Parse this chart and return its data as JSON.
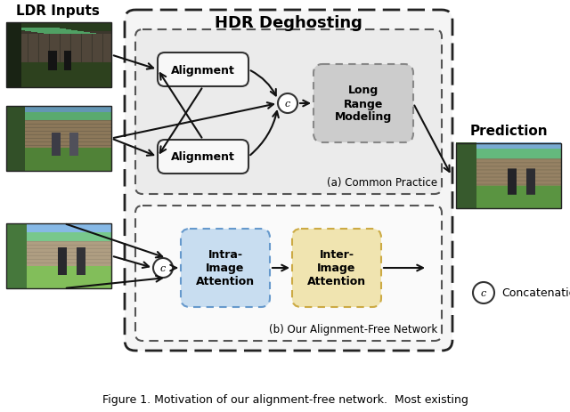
{
  "title": "HDR Deghosting",
  "ldr_label": "LDR Inputs",
  "prediction_label": "Prediction",
  "caption": "Figure 1. Motivation of our alignment-free network.  Most existing",
  "box_alignment1": "Alignment",
  "box_alignment2": "Alignment",
  "box_long_range": "Long\nRange\nModeling",
  "box_intra": "Intra-\nImage\nAttention",
  "box_inter": "Inter-\nImage\nAttention",
  "label_a": "(a) Common Practice",
  "label_b": "(b) Our Alignment-Free Network",
  "concatenation_legend": "Concatenation",
  "colors": {
    "bg": "#ffffff",
    "outer_fill": "#f2f2f2",
    "outer_edge": "#222222",
    "inner_a_fill": "#e8e8e8",
    "inner_b_fill": "#fafafa",
    "align_fill": "#f8f8f8",
    "align_edge": "#333333",
    "lr_fill": "#cccccc",
    "lr_edge": "#888888",
    "intra_fill": "#c8ddf0",
    "intra_edge": "#6699cc",
    "inter_fill": "#f0e4b0",
    "inter_edge": "#ccaa44",
    "arrow": "#111111"
  }
}
